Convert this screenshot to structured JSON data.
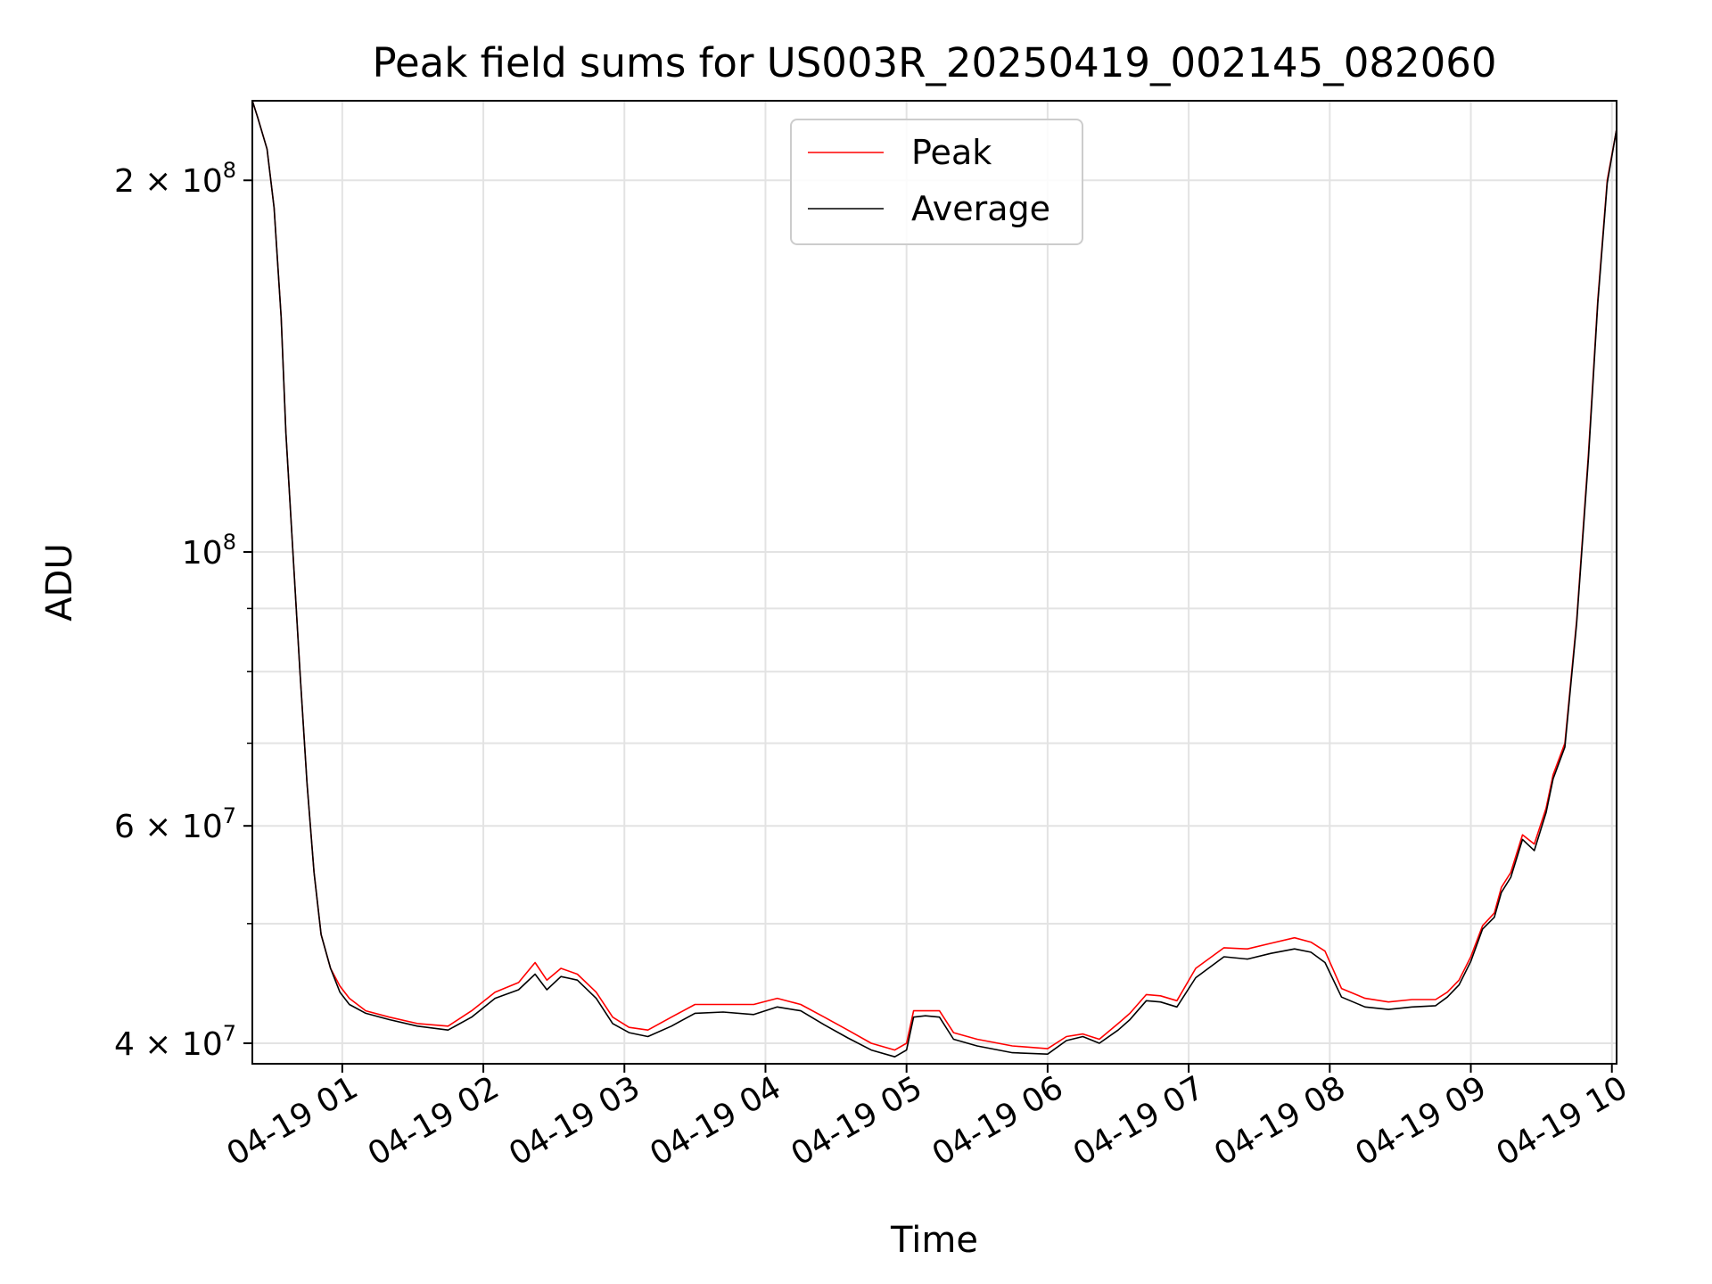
{
  "chart_data": {
    "type": "line",
    "title": "Peak field sums for US003R_20250419_002145_082060",
    "xlabel": "Time",
    "ylabel": "ADU",
    "yscale": "log",
    "xlim": [
      "2025-04-19 00:21:45",
      "2025-04-19 10:02:00"
    ],
    "ylim": [
      38500000,
      232000000
    ],
    "grid": true,
    "legend_position": "upper-center",
    "x_ticks": [
      {
        "value": "2025-04-19 01:00",
        "label": "04-19 01"
      },
      {
        "value": "2025-04-19 02:00",
        "label": "04-19 02"
      },
      {
        "value": "2025-04-19 03:00",
        "label": "04-19 03"
      },
      {
        "value": "2025-04-19 04:00",
        "label": "04-19 04"
      },
      {
        "value": "2025-04-19 05:00",
        "label": "04-19 05"
      },
      {
        "value": "2025-04-19 06:00",
        "label": "04-19 06"
      },
      {
        "value": "2025-04-19 07:00",
        "label": "04-19 07"
      },
      {
        "value": "2025-04-19 08:00",
        "label": "04-19 08"
      },
      {
        "value": "2025-04-19 09:00",
        "label": "04-19 09"
      },
      {
        "value": "2025-04-19 10:00",
        "label": "04-19 10"
      }
    ],
    "y_major_ticks": [
      {
        "value": 40000000,
        "mantissa": "4 × 10",
        "exp": "7"
      },
      {
        "value": 60000000,
        "mantissa": "6 × 10",
        "exp": "7"
      },
      {
        "value": 100000000,
        "mantissa": "10",
        "exp": "8"
      },
      {
        "value": 200000000,
        "mantissa": "2 × 10",
        "exp": "8"
      }
    ],
    "y_minor_ticks": [
      50000000,
      70000000,
      80000000,
      90000000
    ],
    "series": [
      {
        "name": "Peak",
        "color": "#ff0000",
        "x": [
          "2025-04-19 00:21:45",
          "2025-04-19 00:24",
          "2025-04-19 00:28",
          "2025-04-19 00:31",
          "2025-04-19 00:34",
          "2025-04-19 00:36",
          "2025-04-19 00:39",
          "2025-04-19 00:42",
          "2025-04-19 00:45",
          "2025-04-19 00:48",
          "2025-04-19 00:51",
          "2025-04-19 00:55",
          "2025-04-19 00:59",
          "2025-04-19 01:03",
          "2025-04-19 01:10",
          "2025-04-19 01:20",
          "2025-04-19 01:32",
          "2025-04-19 01:45",
          "2025-04-19 01:55",
          "2025-04-19 02:05",
          "2025-04-19 02:15",
          "2025-04-19 02:22",
          "2025-04-19 02:27",
          "2025-04-19 02:33",
          "2025-04-19 02:40",
          "2025-04-19 02:48",
          "2025-04-19 02:55",
          "2025-04-19 03:02",
          "2025-04-19 03:10",
          "2025-04-19 03:20",
          "2025-04-19 03:30",
          "2025-04-19 03:42",
          "2025-04-19 03:55",
          "2025-04-19 04:05",
          "2025-04-19 04:15",
          "2025-04-19 04:25",
          "2025-04-19 04:35",
          "2025-04-19 04:45",
          "2025-04-19 04:55",
          "2025-04-19 05:00",
          "2025-04-19 05:03",
          "2025-04-19 05:08",
          "2025-04-19 05:14",
          "2025-04-19 05:20",
          "2025-04-19 05:30",
          "2025-04-19 05:45",
          "2025-04-19 06:00",
          "2025-04-19 06:08",
          "2025-04-19 06:15",
          "2025-04-19 06:22",
          "2025-04-19 06:30",
          "2025-04-19 06:35",
          "2025-04-19 06:42",
          "2025-04-19 06:48",
          "2025-04-19 06:55",
          "2025-04-19 07:03",
          "2025-04-19 07:15",
          "2025-04-19 07:25",
          "2025-04-19 07:35",
          "2025-04-19 07:45",
          "2025-04-19 07:52",
          "2025-04-19 07:58",
          "2025-04-19 08:05",
          "2025-04-19 08:15",
          "2025-04-19 08:25",
          "2025-04-19 08:35",
          "2025-04-19 08:45",
          "2025-04-19 08:50",
          "2025-04-19 08:55",
          "2025-04-19 09:00",
          "2025-04-19 09:05",
          "2025-04-19 09:10",
          "2025-04-19 09:13",
          "2025-04-19 09:17",
          "2025-04-19 09:22",
          "2025-04-19 09:27",
          "2025-04-19 09:32",
          "2025-04-19 09:35",
          "2025-04-19 09:40",
          "2025-04-19 09:45",
          "2025-04-19 09:50",
          "2025-04-19 09:54",
          "2025-04-19 09:58",
          "2025-04-19 10:02"
        ],
        "y": [
          232000000,
          225000000,
          212000000,
          190000000,
          155000000,
          125000000,
          100000000,
          80000000,
          65000000,
          55000000,
          49000000,
          46000000,
          44500000,
          43500000,
          42500000,
          42000000,
          41500000,
          41300000,
          42500000,
          44000000,
          44800000,
          46500000,
          45000000,
          46000000,
          45500000,
          44000000,
          42000000,
          41200000,
          41000000,
          42000000,
          43000000,
          43000000,
          43000000,
          43500000,
          43000000,
          42000000,
          41000000,
          40000000,
          39500000,
          40000000,
          42500000,
          42500000,
          42500000,
          40800000,
          40300000,
          39800000,
          39600000,
          40500000,
          40700000,
          40300000,
          41500000,
          42300000,
          43800000,
          43700000,
          43300000,
          46000000,
          47800000,
          47700000,
          48200000,
          48700000,
          48300000,
          47500000,
          44300000,
          43500000,
          43200000,
          43400000,
          43400000,
          44000000,
          45000000,
          47000000,
          49800000,
          51000000,
          53500000,
          55000000,
          59000000,
          58000000,
          62000000,
          66000000,
          70000000,
          88000000,
          120000000,
          160000000,
          200000000,
          220000000
        ]
      },
      {
        "name": "Average",
        "color": "#000000",
        "x": [
          "2025-04-19 00:21:45",
          "2025-04-19 00:24",
          "2025-04-19 00:28",
          "2025-04-19 00:31",
          "2025-04-19 00:34",
          "2025-04-19 00:36",
          "2025-04-19 00:39",
          "2025-04-19 00:42",
          "2025-04-19 00:45",
          "2025-04-19 00:48",
          "2025-04-19 00:51",
          "2025-04-19 00:55",
          "2025-04-19 00:59",
          "2025-04-19 01:03",
          "2025-04-19 01:10",
          "2025-04-19 01:20",
          "2025-04-19 01:32",
          "2025-04-19 01:45",
          "2025-04-19 01:55",
          "2025-04-19 02:05",
          "2025-04-19 02:15",
          "2025-04-19 02:22",
          "2025-04-19 02:27",
          "2025-04-19 02:33",
          "2025-04-19 02:40",
          "2025-04-19 02:48",
          "2025-04-19 02:55",
          "2025-04-19 03:02",
          "2025-04-19 03:10",
          "2025-04-19 03:20",
          "2025-04-19 03:30",
          "2025-04-19 03:42",
          "2025-04-19 03:55",
          "2025-04-19 04:05",
          "2025-04-19 04:15",
          "2025-04-19 04:25",
          "2025-04-19 04:35",
          "2025-04-19 04:45",
          "2025-04-19 04:55",
          "2025-04-19 05:00",
          "2025-04-19 05:03",
          "2025-04-19 05:08",
          "2025-04-19 05:14",
          "2025-04-19 05:20",
          "2025-04-19 05:30",
          "2025-04-19 05:45",
          "2025-04-19 06:00",
          "2025-04-19 06:08",
          "2025-04-19 06:15",
          "2025-04-19 06:22",
          "2025-04-19 06:30",
          "2025-04-19 06:35",
          "2025-04-19 06:42",
          "2025-04-19 06:48",
          "2025-04-19 06:55",
          "2025-04-19 07:03",
          "2025-04-19 07:15",
          "2025-04-19 07:25",
          "2025-04-19 07:35",
          "2025-04-19 07:45",
          "2025-04-19 07:52",
          "2025-04-19 07:58",
          "2025-04-19 08:05",
          "2025-04-19 08:15",
          "2025-04-19 08:25",
          "2025-04-19 08:35",
          "2025-04-19 08:45",
          "2025-04-19 08:50",
          "2025-04-19 08:55",
          "2025-04-19 09:00",
          "2025-04-19 09:05",
          "2025-04-19 09:10",
          "2025-04-19 09:13",
          "2025-04-19 09:17",
          "2025-04-19 09:22",
          "2025-04-19 09:27",
          "2025-04-19 09:32",
          "2025-04-19 09:35",
          "2025-04-19 09:40",
          "2025-04-19 09:45",
          "2025-04-19 09:50",
          "2025-04-19 09:54",
          "2025-04-19 09:58",
          "2025-04-19 10:02"
        ],
        "y": [
          232000000,
          225000000,
          212000000,
          190000000,
          155000000,
          125000000,
          100000000,
          80000000,
          65000000,
          55000000,
          49000000,
          46000000,
          44000000,
          43000000,
          42300000,
          41800000,
          41300000,
          41000000,
          42000000,
          43500000,
          44200000,
          45500000,
          44200000,
          45300000,
          45000000,
          43500000,
          41500000,
          40800000,
          40500000,
          41300000,
          42300000,
          42400000,
          42200000,
          42800000,
          42500000,
          41400000,
          40400000,
          39500000,
          39000000,
          39500000,
          42000000,
          42100000,
          42000000,
          40300000,
          39800000,
          39300000,
          39200000,
          40200000,
          40500000,
          40000000,
          41000000,
          41800000,
          43300000,
          43200000,
          42800000,
          45200000,
          47000000,
          46800000,
          47300000,
          47700000,
          47400000,
          46500000,
          43600000,
          42800000,
          42600000,
          42800000,
          42900000,
          43600000,
          44600000,
          46600000,
          49500000,
          50600000,
          53000000,
          54500000,
          58500000,
          57300000,
          61500000,
          65500000,
          69500000,
          87500000,
          119000000,
          159000000,
          199000000,
          220000000
        ]
      }
    ]
  }
}
